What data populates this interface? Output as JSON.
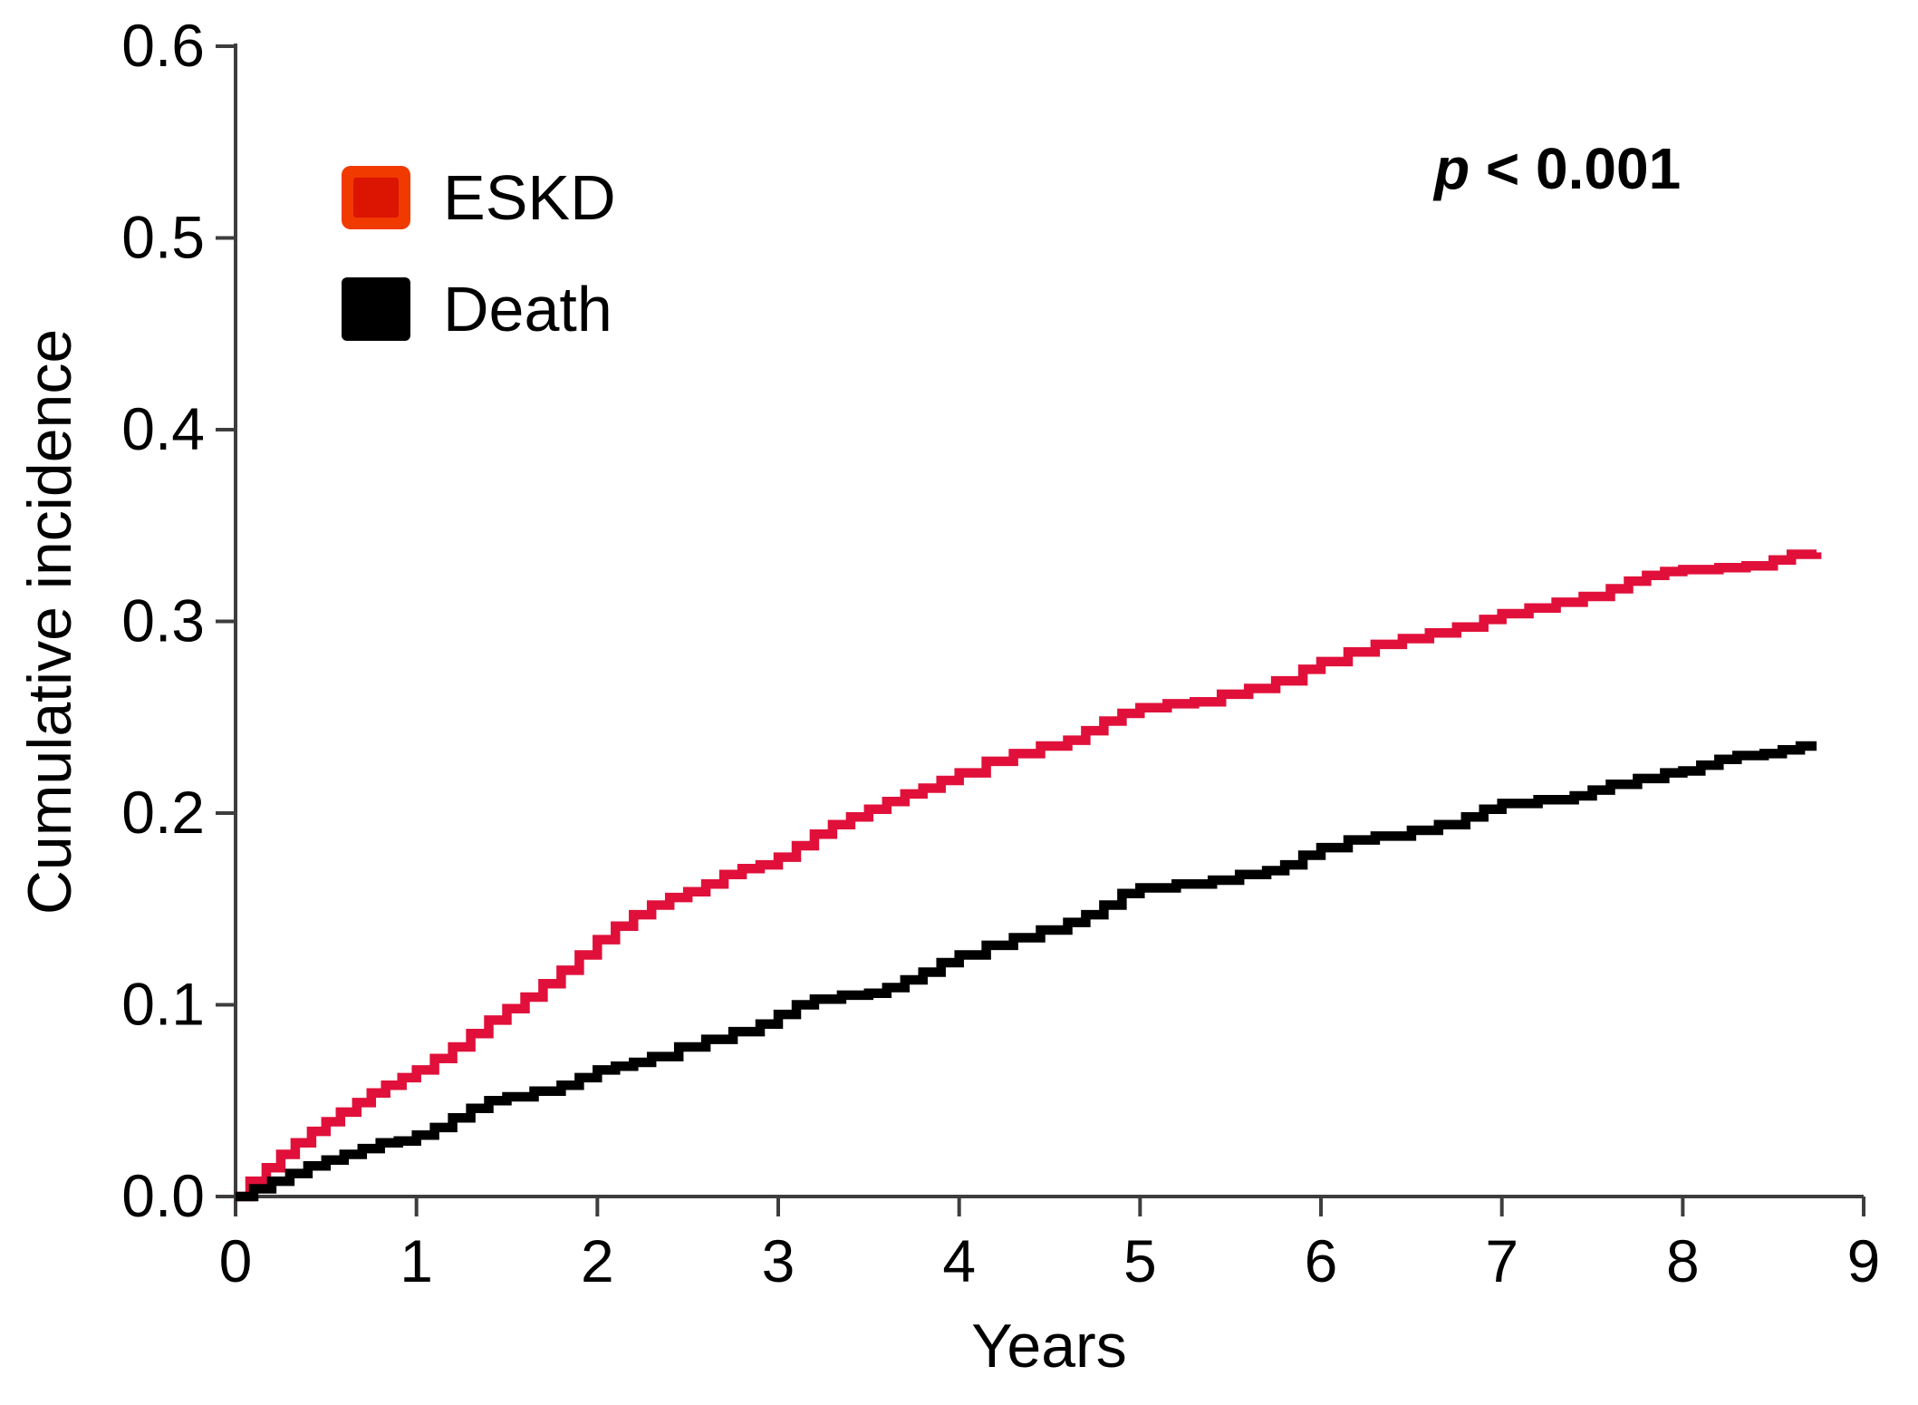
{
  "figure": {
    "background": "#ffffff",
    "text_color": "#000000",
    "axis_color": "#3d3d3d"
  },
  "chart_data": {
    "type": "line",
    "subtype": "cumulative-incidence-step-curves",
    "title": "",
    "xlabel": "Years",
    "ylabel": "Cumulative incidence",
    "xlim": [
      0,
      9
    ],
    "ylim": [
      0.0,
      0.6
    ],
    "x_ticks": [
      "0",
      "1",
      "2",
      "3",
      "4",
      "5",
      "6",
      "7",
      "8",
      "9"
    ],
    "y_ticks": [
      "0.0",
      "0.1",
      "0.2",
      "0.3",
      "0.4",
      "0.5",
      "0.6"
    ],
    "grid": false,
    "legend_position": "top-left",
    "annotation": {
      "symbol": "p",
      "rest": " < 0.001",
      "full_text": "p < 0.001"
    },
    "series": [
      {
        "name": "ESKD",
        "color": "#e0103a",
        "swatch_fill": "#dc1402",
        "swatch_border": "#f13a00",
        "points": [
          [
            0,
            0
          ],
          [
            0.08,
            0.008
          ],
          [
            0.17,
            0.015
          ],
          [
            0.25,
            0.022
          ],
          [
            0.33,
            0.028
          ],
          [
            0.42,
            0.034
          ],
          [
            0.5,
            0.039
          ],
          [
            0.58,
            0.044
          ],
          [
            0.67,
            0.049
          ],
          [
            0.75,
            0.054
          ],
          [
            0.83,
            0.058
          ],
          [
            0.92,
            0.062
          ],
          [
            1,
            0.066
          ],
          [
            1.1,
            0.072
          ],
          [
            1.2,
            0.078
          ],
          [
            1.3,
            0.085
          ],
          [
            1.4,
            0.092
          ],
          [
            1.5,
            0.098
          ],
          [
            1.6,
            0.104
          ],
          [
            1.7,
            0.111
          ],
          [
            1.8,
            0.118
          ],
          [
            1.9,
            0.126
          ],
          [
            2,
            0.134
          ],
          [
            2.1,
            0.141
          ],
          [
            2.2,
            0.147
          ],
          [
            2.3,
            0.152
          ],
          [
            2.4,
            0.156
          ],
          [
            2.5,
            0.159
          ],
          [
            2.6,
            0.163
          ],
          [
            2.7,
            0.168
          ],
          [
            2.8,
            0.171
          ],
          [
            2.9,
            0.173
          ],
          [
            3,
            0.177
          ],
          [
            3.1,
            0.183
          ],
          [
            3.2,
            0.189
          ],
          [
            3.3,
            0.194
          ],
          [
            3.4,
            0.198
          ],
          [
            3.5,
            0.202
          ],
          [
            3.6,
            0.206
          ],
          [
            3.7,
            0.21
          ],
          [
            3.8,
            0.213
          ],
          [
            3.9,
            0.217
          ],
          [
            4,
            0.221
          ],
          [
            4.15,
            0.227
          ],
          [
            4.3,
            0.231
          ],
          [
            4.45,
            0.235
          ],
          [
            4.6,
            0.238
          ],
          [
            4.7,
            0.243
          ],
          [
            4.8,
            0.248
          ],
          [
            4.9,
            0.252
          ],
          [
            5,
            0.255
          ],
          [
            5.15,
            0.257
          ],
          [
            5.3,
            0.258
          ],
          [
            5.45,
            0.262
          ],
          [
            5.6,
            0.265
          ],
          [
            5.75,
            0.269
          ],
          [
            5.9,
            0.275
          ],
          [
            6,
            0.279
          ],
          [
            6.15,
            0.284
          ],
          [
            6.3,
            0.288
          ],
          [
            6.45,
            0.291
          ],
          [
            6.6,
            0.294
          ],
          [
            6.75,
            0.297
          ],
          [
            6.9,
            0.301
          ],
          [
            7,
            0.304
          ],
          [
            7.15,
            0.307
          ],
          [
            7.3,
            0.31
          ],
          [
            7.45,
            0.313
          ],
          [
            7.6,
            0.317
          ],
          [
            7.7,
            0.321
          ],
          [
            7.8,
            0.324
          ],
          [
            7.9,
            0.326
          ],
          [
            8,
            0.327
          ],
          [
            8.2,
            0.328
          ],
          [
            8.35,
            0.329
          ],
          [
            8.5,
            0.332
          ],
          [
            8.6,
            0.335
          ],
          [
            8.74,
            0.336
          ]
        ]
      },
      {
        "name": "Death",
        "color": "#000000",
        "swatch_fill": "#000000",
        "swatch_border": "#000000",
        "points": [
          [
            0,
            0
          ],
          [
            0.1,
            0.004
          ],
          [
            0.2,
            0.008
          ],
          [
            0.3,
            0.012
          ],
          [
            0.4,
            0.016
          ],
          [
            0.5,
            0.019
          ],
          [
            0.6,
            0.022
          ],
          [
            0.7,
            0.025
          ],
          [
            0.8,
            0.028
          ],
          [
            0.9,
            0.029
          ],
          [
            1,
            0.032
          ],
          [
            1.1,
            0.036
          ],
          [
            1.2,
            0.041
          ],
          [
            1.3,
            0.046
          ],
          [
            1.4,
            0.05
          ],
          [
            1.5,
            0.052
          ],
          [
            1.65,
            0.055
          ],
          [
            1.8,
            0.058
          ],
          [
            1.9,
            0.062
          ],
          [
            2,
            0.066
          ],
          [
            2.1,
            0.068
          ],
          [
            2.2,
            0.07
          ],
          [
            2.3,
            0.073
          ],
          [
            2.45,
            0.078
          ],
          [
            2.6,
            0.082
          ],
          [
            2.75,
            0.086
          ],
          [
            2.9,
            0.09
          ],
          [
            3,
            0.095
          ],
          [
            3.1,
            0.1
          ],
          [
            3.2,
            0.103
          ],
          [
            3.35,
            0.105
          ],
          [
            3.5,
            0.106
          ],
          [
            3.6,
            0.109
          ],
          [
            3.7,
            0.113
          ],
          [
            3.8,
            0.117
          ],
          [
            3.9,
            0.122
          ],
          [
            4,
            0.126
          ],
          [
            4.15,
            0.131
          ],
          [
            4.3,
            0.135
          ],
          [
            4.45,
            0.139
          ],
          [
            4.6,
            0.143
          ],
          [
            4.7,
            0.147
          ],
          [
            4.8,
            0.152
          ],
          [
            4.9,
            0.158
          ],
          [
            5,
            0.161
          ],
          [
            5.2,
            0.163
          ],
          [
            5.4,
            0.165
          ],
          [
            5.55,
            0.168
          ],
          [
            5.7,
            0.17
          ],
          [
            5.8,
            0.173
          ],
          [
            5.9,
            0.178
          ],
          [
            6,
            0.182
          ],
          [
            6.15,
            0.186
          ],
          [
            6.3,
            0.188
          ],
          [
            6.5,
            0.191
          ],
          [
            6.65,
            0.194
          ],
          [
            6.8,
            0.198
          ],
          [
            6.9,
            0.202
          ],
          [
            7,
            0.205
          ],
          [
            7.2,
            0.207
          ],
          [
            7.4,
            0.209
          ],
          [
            7.5,
            0.212
          ],
          [
            7.6,
            0.215
          ],
          [
            7.75,
            0.218
          ],
          [
            7.9,
            0.221
          ],
          [
            8,
            0.222
          ],
          [
            8.1,
            0.225
          ],
          [
            8.2,
            0.228
          ],
          [
            8.3,
            0.23
          ],
          [
            8.45,
            0.231
          ],
          [
            8.55,
            0.233
          ],
          [
            8.65,
            0.235
          ],
          [
            8.74,
            0.235
          ]
        ]
      }
    ]
  }
}
